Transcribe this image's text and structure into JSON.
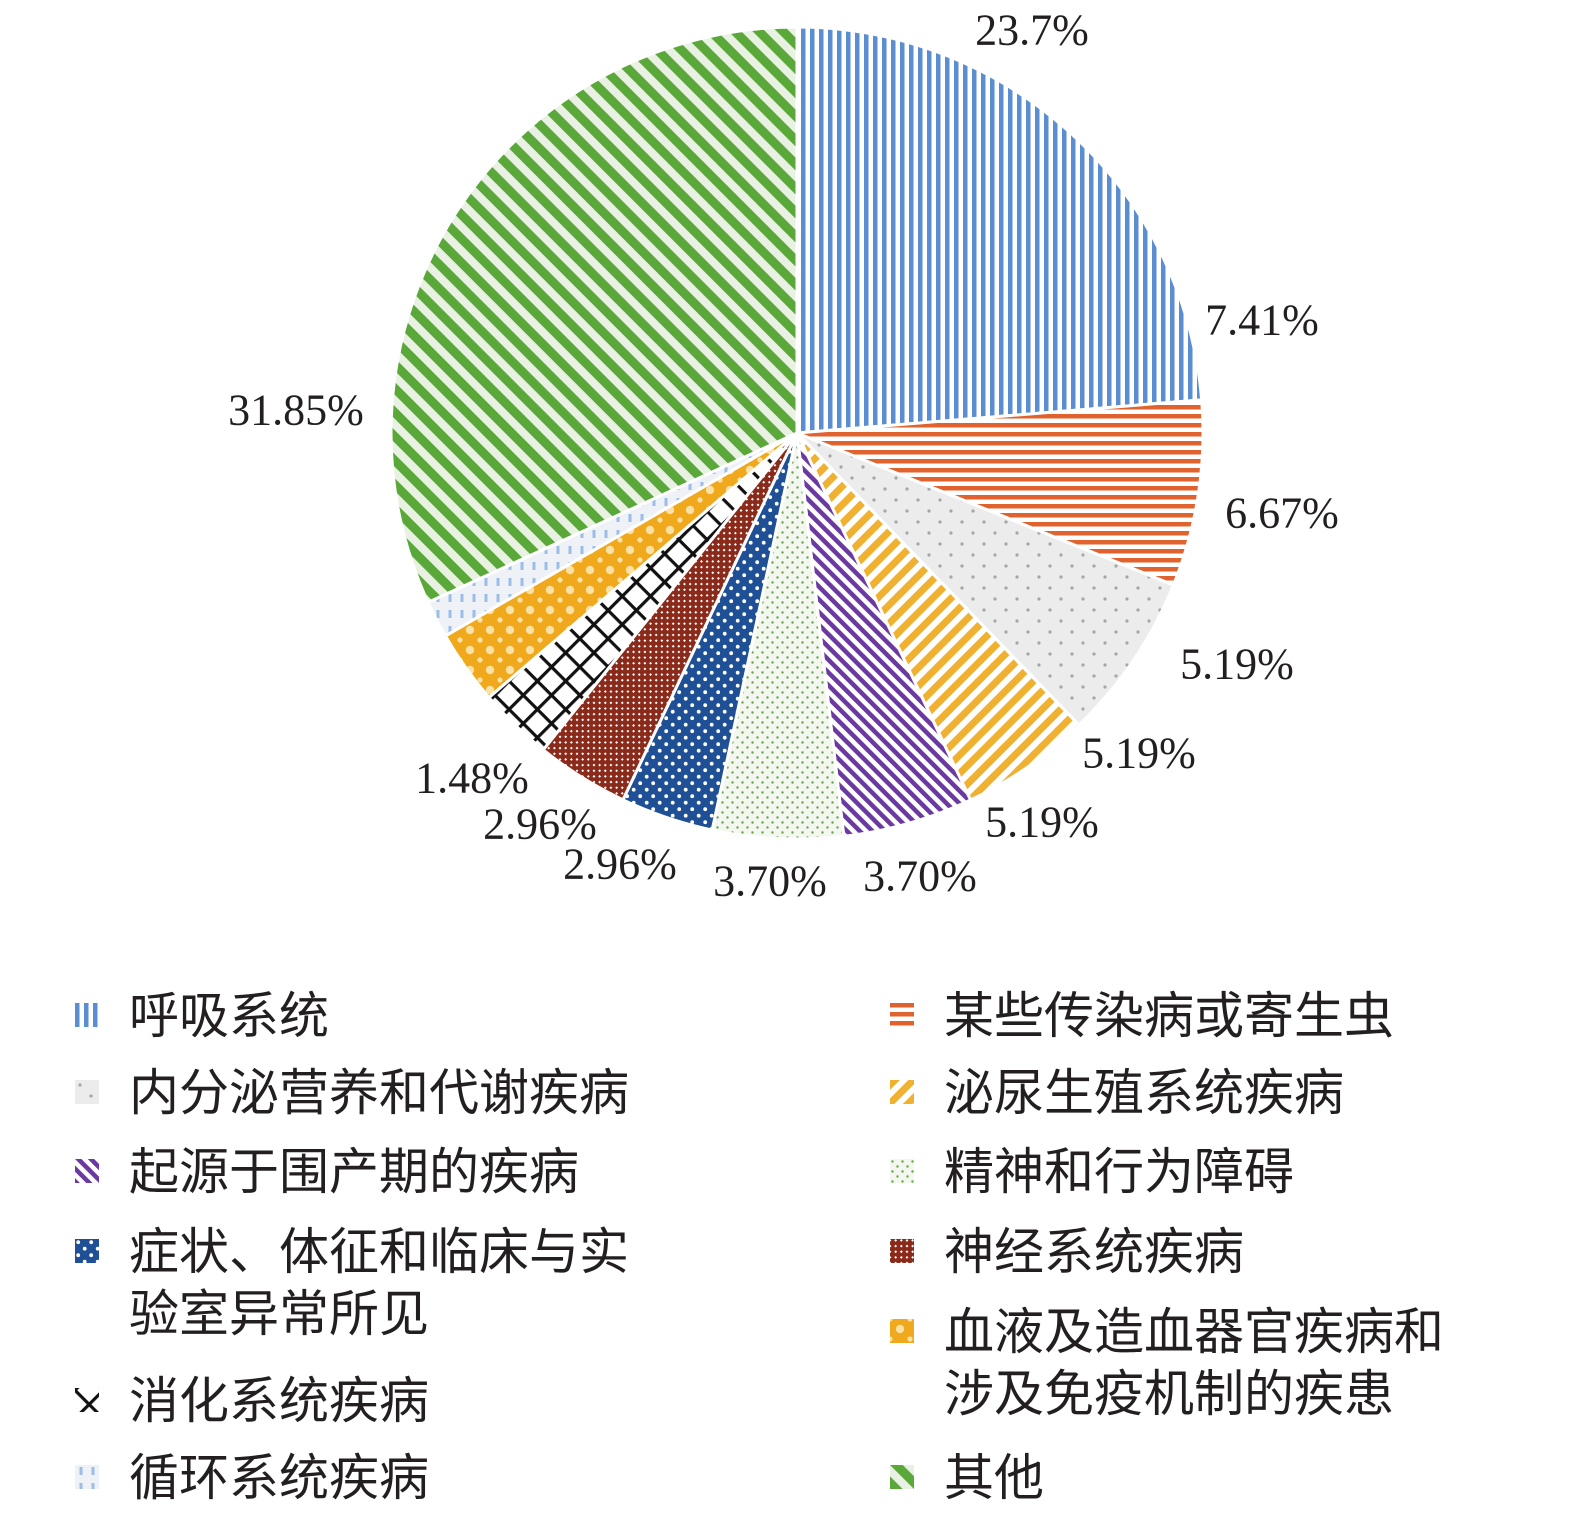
{
  "chart_data": {
    "type": "pie",
    "slices": [
      {
        "name": "呼吸系统",
        "value": 23.7,
        "label": "23.7%",
        "color": "#5b8ed0",
        "pattern": "vertical"
      },
      {
        "name": "某些传染病或寄生虫",
        "value": 7.41,
        "label": "7.41%",
        "color": "#e0622e",
        "pattern": "horizontal"
      },
      {
        "name": "内分泌营养和代谢疾病",
        "value": 6.67,
        "label": "6.67%",
        "color": "#a6a6a6",
        "pattern": "dots-sparse"
      },
      {
        "name": "泌尿生殖系统疾病",
        "value": 5.19,
        "label": "5.19%",
        "color": "#f0b030",
        "pattern": "diag-up"
      },
      {
        "name": "起源于围产期的疾病",
        "value": 5.19,
        "label": "5.19%",
        "color": "#6a3aa0",
        "pattern": "diag-down"
      },
      {
        "name": "精神和行为障碍",
        "value": 5.19,
        "label": "5.19%",
        "color": "#62a843",
        "pattern": "dots-fine"
      },
      {
        "name": "症状、体征和临床与实验室异常所见",
        "value": 3.7,
        "label": "3.70%",
        "color": "#1f4f95",
        "pattern": "dots-large"
      },
      {
        "name": "神经系统疾病",
        "value": 3.7,
        "label": "3.70%",
        "color": "#8a2a1a",
        "pattern": "crosshatch-fine"
      },
      {
        "name": "消化系统疾病",
        "value": 2.96,
        "label": "2.96%",
        "color": "#111111",
        "pattern": "crosshatch"
      },
      {
        "name": "血液及造血器官疾病和涉及免疫机制的疾患",
        "value": 2.96,
        "label": "2.96%",
        "color": "#f0a81c",
        "pattern": "checker"
      },
      {
        "name": "循环系统疾病",
        "value": 1.48,
        "label": "1.48%",
        "color": "#9bbde8",
        "pattern": "dashed"
      },
      {
        "name": "其他",
        "value": 31.85,
        "label": "31.85%",
        "color": "#5aa83a",
        "pattern": "diag-down-wide"
      }
    ],
    "legend": {
      "placement": "bottom",
      "columns": [
        [
          "呼吸系统",
          "内分泌营养和代谢疾病",
          "起源于围产期的疾病",
          "症状、体征和临床与实\n验室异常所见",
          "消化系统疾病",
          "循环系统疾病"
        ],
        [
          "某些传染病或寄生虫",
          "泌尿生殖系统疾病",
          "精神和行为障碍",
          "神经系统疾病",
          "血液及造血器官疾病和\n涉及免疫机制的疾患",
          "其他"
        ]
      ]
    },
    "title": "",
    "grid": false
  }
}
